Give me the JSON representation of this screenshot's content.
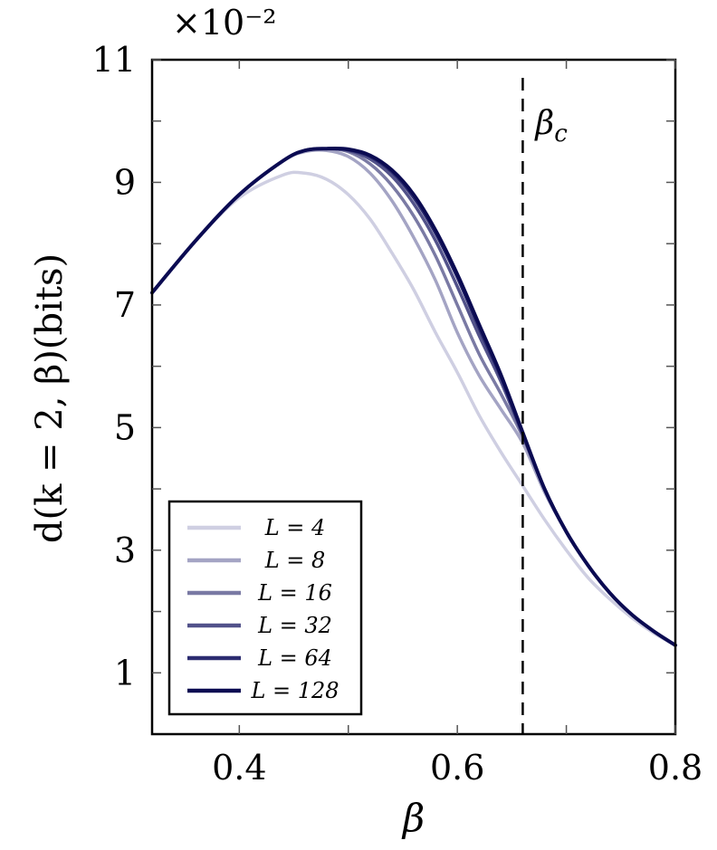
{
  "chart_data": {
    "type": "line",
    "xlabel": "β",
    "ylabel": "d(k = 2, β)(bits)",
    "scale_label": "×10⁻²",
    "xlim": [
      0.32,
      0.8
    ],
    "ylim": [
      0,
      11
    ],
    "x_ticks": [
      "0.4",
      "0.6",
      "0.8"
    ],
    "y_ticks": [
      "1",
      "3",
      "5",
      "7",
      "9",
      "11"
    ],
    "grid": false,
    "legend_position": "lower-left",
    "critical_line": {
      "x": 0.66,
      "label": "βc",
      "style": "dashed"
    },
    "x": [
      0.32,
      0.36,
      0.4,
      0.44,
      0.46,
      0.48,
      0.5,
      0.52,
      0.54,
      0.56,
      0.58,
      0.6,
      0.62,
      0.64,
      0.66,
      0.68,
      0.7,
      0.72,
      0.74,
      0.76,
      0.78,
      0.8
    ],
    "series": [
      {
        "name": "L = 4",
        "color": "#cfcfe2",
        "values": [
          7.2,
          8.05,
          8.75,
          9.12,
          9.15,
          9.05,
          8.8,
          8.4,
          7.85,
          7.25,
          6.55,
          5.9,
          5.2,
          4.6,
          4.05,
          3.5,
          3.0,
          2.55,
          2.2,
          1.9,
          1.65,
          1.45
        ]
      },
      {
        "name": "L = 8",
        "color": "#a4a4c4",
        "values": [
          7.2,
          8.05,
          8.8,
          9.35,
          9.5,
          9.52,
          9.42,
          9.15,
          8.7,
          8.1,
          7.4,
          6.55,
          5.85,
          5.3,
          4.75,
          3.95,
          3.3,
          2.75,
          2.3,
          1.95,
          1.68,
          1.45
        ]
      },
      {
        "name": "L = 16",
        "color": "#7a7aa4",
        "values": [
          7.2,
          8.05,
          8.8,
          9.35,
          9.52,
          9.55,
          9.5,
          9.3,
          8.95,
          8.45,
          7.8,
          7.0,
          6.2,
          5.55,
          4.85,
          4.0,
          3.3,
          2.75,
          2.3,
          1.95,
          1.68,
          1.45
        ]
      },
      {
        "name": "L = 32",
        "color": "#52528a",
        "values": [
          7.2,
          8.05,
          8.8,
          9.35,
          9.52,
          9.55,
          9.52,
          9.38,
          9.1,
          8.65,
          8.05,
          7.3,
          6.5,
          5.75,
          4.88,
          4.0,
          3.3,
          2.75,
          2.3,
          1.95,
          1.68,
          1.45
        ]
      },
      {
        "name": "L = 64",
        "color": "#2c2c70",
        "values": [
          7.2,
          8.05,
          8.8,
          9.35,
          9.52,
          9.55,
          9.53,
          9.42,
          9.17,
          8.75,
          8.17,
          7.45,
          6.62,
          5.82,
          4.9,
          4.0,
          3.3,
          2.75,
          2.3,
          1.95,
          1.68,
          1.45
        ]
      },
      {
        "name": "L = 128",
        "color": "#0b0b52",
        "values": [
          7.2,
          8.05,
          8.8,
          9.35,
          9.52,
          9.55,
          9.54,
          9.44,
          9.2,
          8.8,
          8.22,
          7.5,
          6.68,
          5.86,
          4.92,
          4.0,
          3.3,
          2.75,
          2.3,
          1.95,
          1.68,
          1.45
        ]
      }
    ]
  }
}
